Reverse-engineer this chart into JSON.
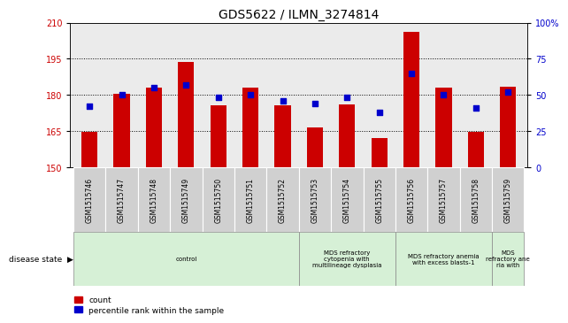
{
  "title": "GDS5622 / ILMN_3274814",
  "samples": [
    "GSM1515746",
    "GSM1515747",
    "GSM1515748",
    "GSM1515749",
    "GSM1515750",
    "GSM1515751",
    "GSM1515752",
    "GSM1515753",
    "GSM1515754",
    "GSM1515755",
    "GSM1515756",
    "GSM1515757",
    "GSM1515758",
    "GSM1515759"
  ],
  "bar_values": [
    164.5,
    180.5,
    183.0,
    193.5,
    175.5,
    183.0,
    175.5,
    166.5,
    176.0,
    162.0,
    206.0,
    183.0,
    164.5,
    183.5
  ],
  "percentile_values": [
    42,
    50,
    55,
    57,
    48,
    50,
    46,
    44,
    48,
    38,
    65,
    50,
    41,
    52
  ],
  "bar_color": "#cc0000",
  "dot_color": "#0000cc",
  "ylim_left": [
    150,
    210
  ],
  "ylim_right": [
    0,
    100
  ],
  "yticks_left": [
    150,
    165,
    180,
    195,
    210
  ],
  "yticks_right": [
    0,
    25,
    50,
    75,
    100
  ],
  "ytick_labels_right": [
    "0",
    "25",
    "50",
    "75",
    "100%"
  ],
  "disease_state_label": "disease state",
  "legend_count": "count",
  "legend_percentile": "percentile rank within the sample",
  "bar_width": 0.5,
  "background_color": "#ffffff",
  "plot_bg_color": "#ebebeb",
  "title_fontsize": 10,
  "tick_fontsize": 7,
  "label_fontsize": 7,
  "group_starts": [
    0,
    7,
    10,
    13
  ],
  "group_ends": [
    7,
    10,
    13,
    14
  ],
  "group_labels": [
    "control",
    "MDS refractory\ncytopenia with\nmultilineage dysplasia",
    "MDS refractory anemia\nwith excess blasts-1",
    "MDS\nrefractory ane\nria with"
  ],
  "group_color_light": "#d6f0d6",
  "group_color_control": "#d6f0d6"
}
